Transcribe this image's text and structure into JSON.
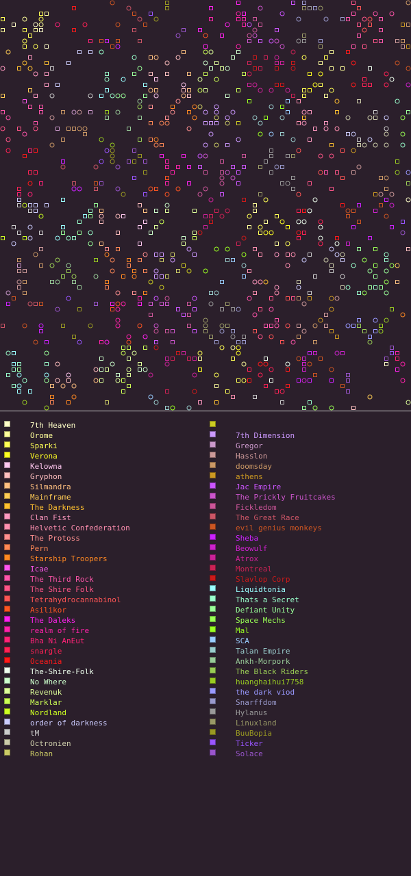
{
  "legend": {
    "left": [
      {
        "name": "7th Heaven",
        "color": "#ffffc8"
      },
      {
        "name": "Orome",
        "color": "#ffff9a"
      },
      {
        "name": "Sparki",
        "color": "#ffff55"
      },
      {
        "name": "Verona",
        "color": "#ffff22"
      },
      {
        "name": "Kelowna",
        "color": "#ffc8f0"
      },
      {
        "name": "Gryphon",
        "color": "#ffbfbf"
      },
      {
        "name": "Silmandra",
        "color": "#ffc080"
      },
      {
        "name": "Mainframe",
        "color": "#ffcc55"
      },
      {
        "name": "The Darkness",
        "color": "#ffc030"
      },
      {
        "name": "Clan Fist",
        "color": "#ff99c0"
      },
      {
        "name": "Helvetic Confederation",
        "color": "#ff8fb0"
      },
      {
        "name": "The Protoss",
        "color": "#ff9090"
      },
      {
        "name": "Pern",
        "color": "#ff8855"
      },
      {
        "name": "Starship Troopers",
        "color": "#ff8822"
      },
      {
        "name": "Icae",
        "color": "#ff55ee"
      },
      {
        "name": "The Third Rock",
        "color": "#ff55aa"
      },
      {
        "name": "The Shire Folk",
        "color": "#ff5588"
      },
      {
        "name": "Tetrahydrocannabinol",
        "color": "#ff5555"
      },
      {
        "name": "Asilikor",
        "color": "#ff5522"
      },
      {
        "name": "The Daleks",
        "color": "#ff22ee"
      },
      {
        "name": "realm of fire",
        "color": "#ff22aa"
      },
      {
        "name": "Bha Ni AnEut",
        "color": "#ff2277"
      },
      {
        "name": "snargle",
        "color": "#ff2255"
      },
      {
        "name": "Oceania",
        "color": "#ff1a1a"
      },
      {
        "name": "The-Shire-Folk",
        "color": "#eeffee"
      },
      {
        "name": "No Where",
        "color": "#ccffcc"
      },
      {
        "name": "Revenuk",
        "color": "#ddff99"
      },
      {
        "name": "Marklar",
        "color": "#ccff55"
      },
      {
        "name": "Nordland",
        "color": "#ccff22"
      },
      {
        "name": "order of darkness",
        "color": "#ccccff"
      },
      {
        "name": "tM",
        "color": "#cccccc"
      },
      {
        "name": "Octronien",
        "color": "#ccccaa"
      },
      {
        "name": "Rohan",
        "color": "#cccc66"
      }
    ],
    "right": [
      {
        "name": "",
        "color": "#cccc22"
      },
      {
        "name": "7th Dimension",
        "color": "#cc99ff"
      },
      {
        "name": "Gregor",
        "color": "#cc99cc"
      },
      {
        "name": "Hasslon",
        "color": "#cc9999"
      },
      {
        "name": "doomsday",
        "color": "#cc9966"
      },
      {
        "name": "athens",
        "color": "#cc9922"
      },
      {
        "name": "Jac Empire",
        "color": "#cc55ff"
      },
      {
        "name": "The Prickly Fruitcakes",
        "color": "#cc55cc"
      },
      {
        "name": "Fickledom",
        "color": "#cc5599"
      },
      {
        "name": "The Great Race",
        "color": "#cc5566"
      },
      {
        "name": "evil genius monkeys",
        "color": "#cc5522"
      },
      {
        "name": "Sheba",
        "color": "#cc22ff"
      },
      {
        "name": "Beowulf",
        "color": "#cc22cc"
      },
      {
        "name": "Atrox",
        "color": "#cc2299"
      },
      {
        "name": "Montreal",
        "color": "#cc2255"
      },
      {
        "name": "Slavlop Corp",
        "color": "#cc1a1a"
      },
      {
        "name": "Liquidtonia",
        "color": "#99ffff"
      },
      {
        "name": "Thats a Secret",
        "color": "#99ffcc"
      },
      {
        "name": "Defiant Unity",
        "color": "#99ff99"
      },
      {
        "name": "Space Mechs",
        "color": "#99ff55"
      },
      {
        "name": "Mal",
        "color": "#99ff22"
      },
      {
        "name": "SCA",
        "color": "#99ccff"
      },
      {
        "name": "Talan Empire",
        "color": "#99cccc"
      },
      {
        "name": "Ankh-Morpork",
        "color": "#99cc99"
      },
      {
        "name": "The Black Riders",
        "color": "#99cc55"
      },
      {
        "name": "huanghaihui7758",
        "color": "#99cc22"
      },
      {
        "name": "the dark viod",
        "color": "#9999ff"
      },
      {
        "name": "Snarffdom",
        "color": "#9999cc"
      },
      {
        "name": "Hylanus",
        "color": "#999999"
      },
      {
        "name": "Linuxland",
        "color": "#999966"
      },
      {
        "name": "BuuBopia",
        "color": "#999922"
      },
      {
        "name": "Ticker",
        "color": "#9955ff"
      },
      {
        "name": "Solace",
        "color": "#9955cc"
      }
    ]
  }
}
